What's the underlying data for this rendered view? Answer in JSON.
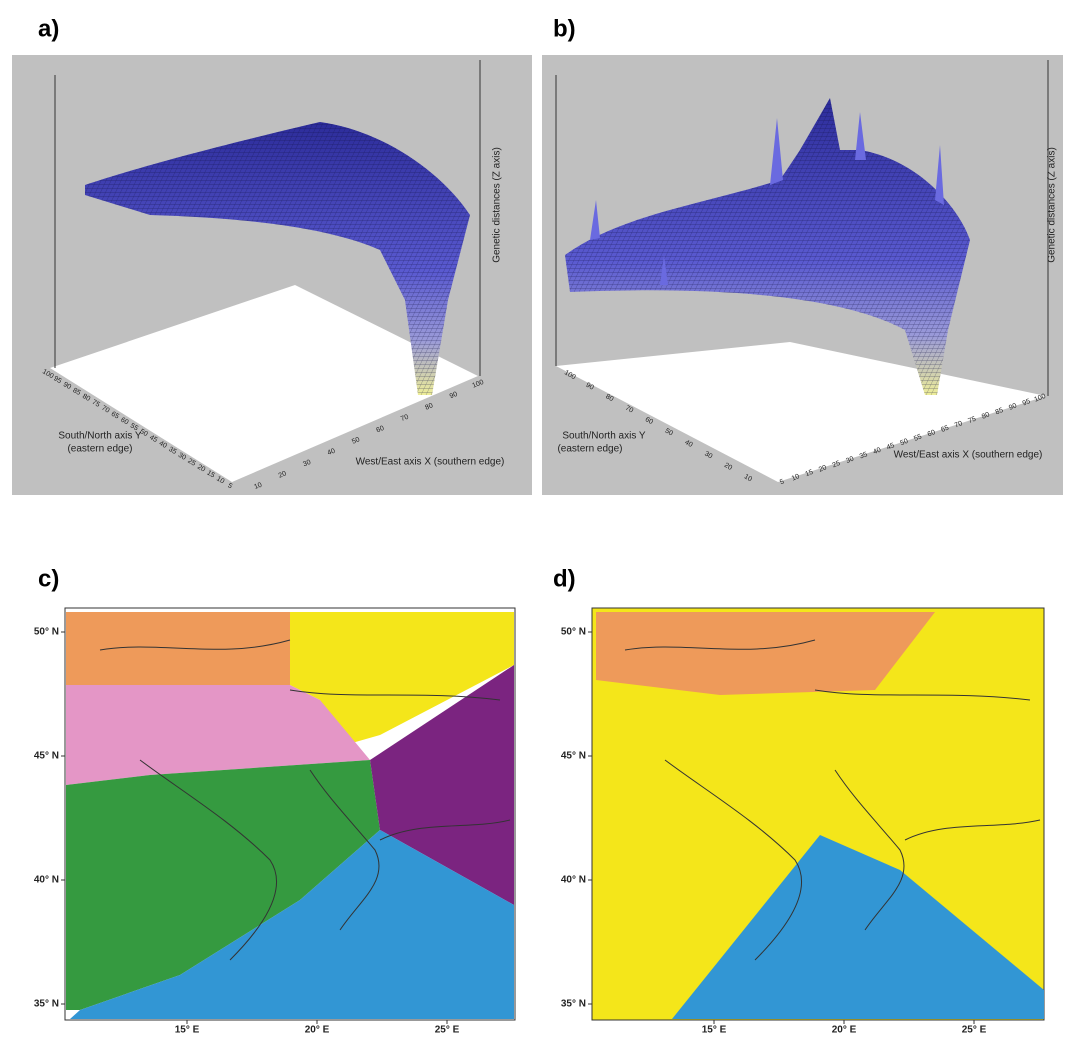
{
  "panels": [
    {
      "label": "a)",
      "z_axis": "Genetic distances (Z axis)",
      "y_axis": [
        "South/North axis Y",
        "(eastern edge)"
      ],
      "x_axis": "West/East axis X (southern edge)",
      "x_ticks": [
        "10",
        "20",
        "30",
        "40",
        "50",
        "60",
        "70",
        "80",
        "90",
        "100"
      ],
      "y_ticks": [
        "100",
        "95",
        "90",
        "85",
        "80",
        "75",
        "70",
        "65",
        "60",
        "55",
        "50",
        "45",
        "40",
        "35",
        "30",
        "25",
        "20",
        "15",
        "10",
        "5"
      ]
    },
    {
      "label": "b)",
      "z_axis": "Genetic distances (Z axis)",
      "y_axis": [
        "South/North axis Y",
        "(eastern edge)"
      ],
      "x_axis": "West/East axis X (southern edge)",
      "x_ticks": [
        "5",
        "10",
        "15",
        "20",
        "25",
        "30",
        "35",
        "40",
        "45",
        "50",
        "55",
        "60",
        "65",
        "70",
        "75",
        "80",
        "85",
        "90",
        "95",
        "100"
      ],
      "y_ticks": [
        "100",
        "90",
        "80",
        "70",
        "60",
        "50",
        "40",
        "30",
        "20",
        "10"
      ]
    }
  ],
  "maps": [
    {
      "label": "c)",
      "lat_ticks": [
        "50° N",
        "45° N",
        "40° N",
        "35° N"
      ],
      "lon_ticks": [
        "15° E",
        "20° E",
        "25° E"
      ]
    },
    {
      "label": "d)",
      "lat_ticks": [
        "50° N",
        "45° N",
        "40° N",
        "35° N"
      ],
      "lon_ticks": [
        "15° E",
        "20° E",
        "25° E"
      ]
    }
  ]
}
